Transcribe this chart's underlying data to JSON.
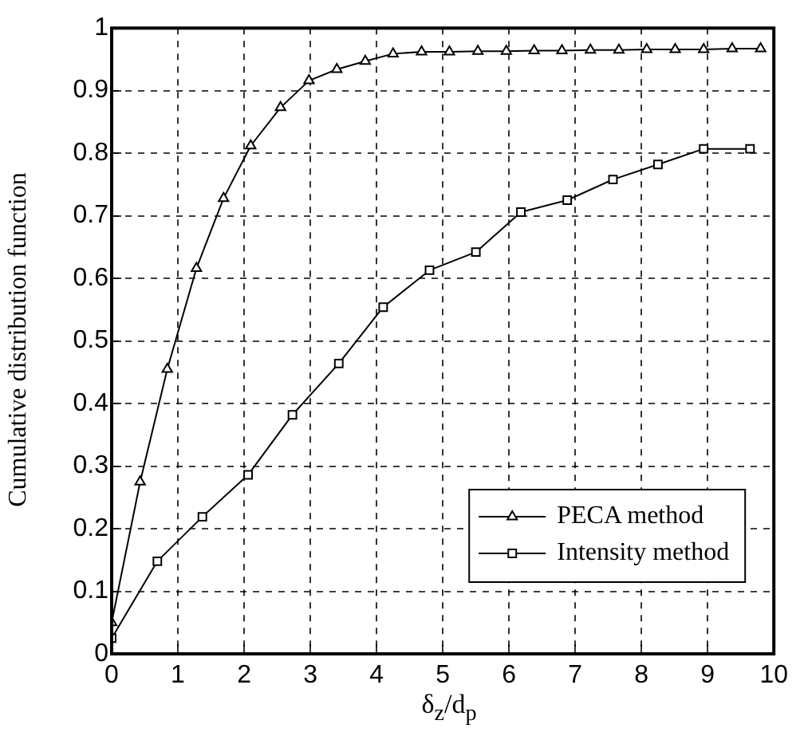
{
  "chart_data": {
    "type": "line",
    "xlabel": "δ$_{z}$/d$_{p}$",
    "ylabel": "Cumulative distribution function",
    "xlim": [
      0,
      10
    ],
    "xticks": [
      0,
      1,
      2,
      3,
      4,
      5,
      6,
      7,
      8,
      9,
      10
    ],
    "ylim": [
      0,
      1
    ],
    "yticks": [
      0,
      0.1,
      0.2,
      0.3,
      0.4,
      0.5,
      0.6,
      0.7,
      0.8,
      0.9,
      1
    ],
    "grid": true,
    "legend": "bottom right",
    "line_style": "solid",
    "series": [
      {
        "name": "PECA method",
        "color": "#000000",
        "marker": "triangle",
        "x": [
          0,
          0.43,
          0.84,
          1.28,
          1.69,
          2.1,
          2.55,
          2.98,
          3.4,
          3.83,
          4.25,
          4.68,
          5.1,
          5.53,
          5.96,
          6.38,
          6.8,
          7.23,
          7.66,
          8.08,
          8.51,
          8.94,
          9.37,
          9.8
        ],
        "values": [
          0.05,
          0.275,
          0.455,
          0.616,
          0.728,
          0.812,
          0.873,
          0.916,
          0.934,
          0.947,
          0.959,
          0.962,
          0.962,
          0.963,
          0.963,
          0.964,
          0.964,
          0.965,
          0.965,
          0.966,
          0.966,
          0.966,
          0.967,
          0.967
        ]
      },
      {
        "name": "Intensity method",
        "color": "#000000",
        "marker": "square",
        "x": [
          0,
          0.69,
          1.37,
          2.06,
          2.73,
          3.43,
          4.1,
          4.8,
          5.5,
          6.18,
          6.88,
          7.57,
          8.25,
          8.94,
          9.64
        ],
        "values": [
          0.025,
          0.148,
          0.219,
          0.286,
          0.382,
          0.464,
          0.554,
          0.613,
          0.642,
          0.706,
          0.725,
          0.758,
          0.782,
          0.807,
          0.807
        ]
      }
    ]
  }
}
